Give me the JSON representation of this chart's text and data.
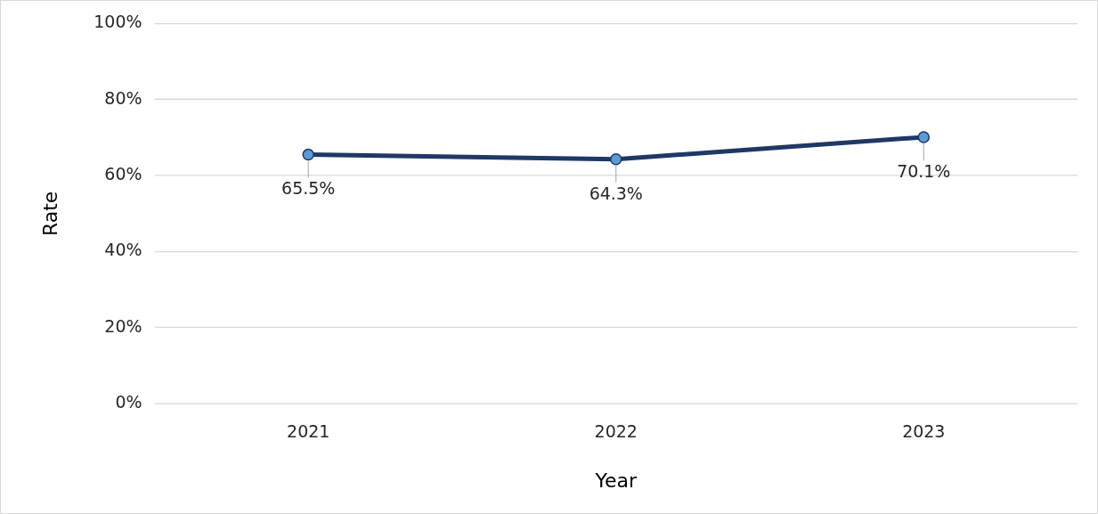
{
  "chart_data": {
    "type": "line",
    "xlabel": "Year",
    "ylabel": "Rate",
    "categories": [
      "2021",
      "2022",
      "2023"
    ],
    "series": [
      {
        "color": "#1f3864",
        "colors": [
          "#5b9bd5",
          "#5b9bd5",
          "#5b9bd5"
        ],
        "values": [
          65.5,
          64.3,
          70.1
        ],
        "value_labels": [
          "65.5%",
          "64.3%",
          "70.1%"
        ]
      }
    ],
    "ylim": [
      0,
      100
    ],
    "yticks": [
      {
        "value": 0,
        "label": "0%"
      },
      {
        "value": 20,
        "label": "20%"
      },
      {
        "value": 40,
        "label": "40%"
      },
      {
        "value": 60,
        "label": "60%"
      },
      {
        "value": 80,
        "label": "80%"
      },
      {
        "value": 100,
        "label": "100%"
      }
    ],
    "grid": "y",
    "legend": false,
    "marker": "circle",
    "line_style": "solid"
  }
}
